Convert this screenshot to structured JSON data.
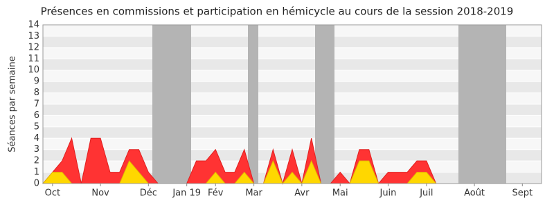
{
  "chart_data": {
    "type": "area",
    "title": "Présences en commissions et participation en hémicycle au cours de la session 2018-2019",
    "y_label": "Séances par semaine",
    "categories": [
      null,
      "Oct",
      null,
      null,
      null,
      null,
      "Nov",
      null,
      null,
      null,
      null,
      "Déc",
      null,
      null,
      null,
      "Jan 19",
      null,
      null,
      "Fév",
      null,
      null,
      null,
      "Mar",
      null,
      null,
      null,
      null,
      "Avr",
      null,
      null,
      null,
      "Mai",
      null,
      null,
      null,
      null,
      "Juin",
      null,
      null,
      null,
      "Juil",
      null,
      null,
      null,
      null,
      "Août",
      null,
      null,
      null,
      null,
      "Sept",
      null,
      null
    ],
    "series": [
      {
        "color": "#ff3333",
        "values": [
          0,
          1,
          2,
          4,
          0,
          4,
          4,
          1,
          1,
          3,
          3,
          1,
          0,
          0,
          0,
          0,
          2,
          2,
          3,
          1,
          1,
          3,
          0,
          0,
          3,
          0,
          3,
          0,
          4,
          0,
          0,
          1,
          0,
          3,
          3,
          0,
          1,
          1,
          1,
          2,
          2,
          0,
          0,
          0,
          0,
          0,
          0,
          0,
          0,
          0,
          0,
          0,
          0
        ]
      },
      {
        "color": "#ffd700",
        "values": [
          0,
          1,
          1,
          0,
          0,
          0,
          0,
          0,
          0,
          2,
          1,
          0,
          0,
          0,
          0,
          0,
          0,
          0,
          1,
          0,
          0,
          1,
          0,
          0,
          2,
          0,
          1,
          0,
          2,
          0,
          0,
          0,
          0,
          2,
          2,
          0,
          0,
          0,
          0,
          1,
          1,
          0,
          0,
          0,
          0,
          0,
          0,
          0,
          0,
          0,
          0,
          0,
          0
        ]
      }
    ],
    "ylim": [
      0,
      14
    ],
    "yticks": [
      0,
      1,
      2,
      3,
      4,
      5,
      6,
      7,
      8,
      9,
      10,
      11,
      12,
      13,
      14
    ],
    "grid": true
  }
}
